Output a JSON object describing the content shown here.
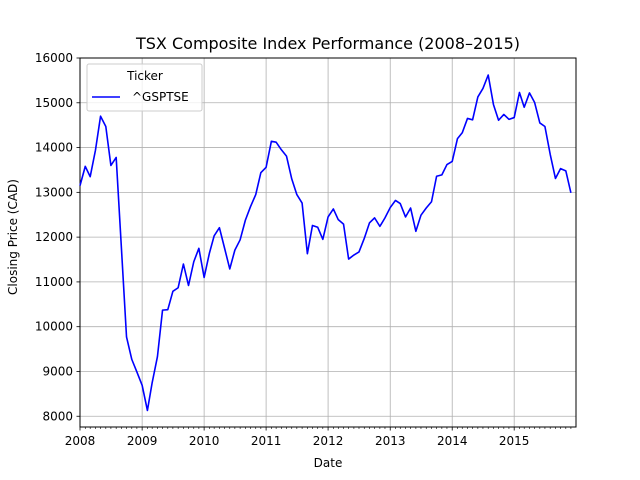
{
  "chart_data": {
    "type": "line",
    "title": "TSX Composite Index Performance (2008–2015)",
    "xlabel": "Date",
    "ylabel": "Closing Price (CAD)",
    "legend": {
      "title": "Ticker",
      "placement": "top-left"
    },
    "grid": true,
    "xlim": [
      "2008-01-01",
      "2015-12-31"
    ],
    "ylim": [
      7760,
      16000
    ],
    "x_ticks": [
      "2008",
      "2009",
      "2010",
      "2011",
      "2012",
      "2013",
      "2014",
      "2015"
    ],
    "y_ticks": [
      "8000",
      "9000",
      "10000",
      "11000",
      "12000",
      "13000",
      "14000",
      "15000",
      "16000"
    ],
    "series": [
      {
        "name": "^GSPTSE",
        "color": "#0000ff",
        "x": [
          "2008-01-01",
          "2008-02-01",
          "2008-03-01",
          "2008-04-01",
          "2008-05-01",
          "2008-06-01",
          "2008-07-01",
          "2008-08-01",
          "2008-09-01",
          "2008-10-01",
          "2008-11-01",
          "2008-12-01",
          "2009-01-01",
          "2009-02-01",
          "2009-03-01",
          "2009-04-01",
          "2009-05-01",
          "2009-06-01",
          "2009-07-01",
          "2009-08-01",
          "2009-09-01",
          "2009-10-01",
          "2009-11-01",
          "2009-12-01",
          "2010-01-01",
          "2010-02-01",
          "2010-03-01",
          "2010-04-01",
          "2010-05-01",
          "2010-06-01",
          "2010-07-01",
          "2010-08-01",
          "2010-09-01",
          "2010-10-01",
          "2010-11-01",
          "2010-12-01",
          "2011-01-01",
          "2011-02-01",
          "2011-03-01",
          "2011-04-01",
          "2011-05-01",
          "2011-06-01",
          "2011-07-01",
          "2011-08-01",
          "2011-09-01",
          "2011-10-01",
          "2011-11-01",
          "2011-12-01",
          "2012-01-01",
          "2012-02-01",
          "2012-03-01",
          "2012-04-01",
          "2012-05-01",
          "2012-06-01",
          "2012-07-01",
          "2012-08-01",
          "2012-09-01",
          "2012-10-01",
          "2012-11-01",
          "2012-12-01",
          "2013-01-01",
          "2013-02-01",
          "2013-03-01",
          "2013-04-01",
          "2013-05-01",
          "2013-06-01",
          "2013-07-01",
          "2013-08-01",
          "2013-09-01",
          "2013-10-01",
          "2013-11-01",
          "2013-12-01",
          "2014-01-01",
          "2014-02-01",
          "2014-03-01",
          "2014-04-01",
          "2014-05-01",
          "2014-06-01",
          "2014-07-01",
          "2014-08-01",
          "2014-09-01",
          "2014-10-01",
          "2014-11-01",
          "2014-12-01",
          "2015-01-01",
          "2015-02-01",
          "2015-03-01",
          "2015-04-01",
          "2015-05-01",
          "2015-06-01",
          "2015-07-01",
          "2015-08-01",
          "2015-09-01",
          "2015-10-01",
          "2015-11-01",
          "2015-12-01"
        ],
        "y": [
          13150,
          13580,
          13350,
          13940,
          14700,
          14470,
          13600,
          13780,
          11750,
          9770,
          9270,
          8990,
          8690,
          8130,
          8750,
          9330,
          10370,
          10380,
          10790,
          10870,
          11400,
          10920,
          11450,
          11750,
          11100,
          11640,
          12030,
          12210,
          11760,
          11290,
          11710,
          11940,
          12380,
          12680,
          12950,
          13440,
          13560,
          14140,
          14120,
          13950,
          13810,
          13300,
          12950,
          12760,
          11630,
          12260,
          12220,
          11950,
          12450,
          12630,
          12390,
          12290,
          11510,
          11600,
          11670,
          11970,
          12320,
          12430,
          12240,
          12430,
          12660,
          12820,
          12750,
          12450,
          12650,
          12130,
          12490,
          12650,
          12790,
          13360,
          13390,
          13620,
          13690,
          14200,
          14330,
          14650,
          14620,
          15130,
          15320,
          15620,
          14960,
          14610,
          14740,
          14630,
          14670,
          15230,
          14900,
          15220,
          15010,
          14550,
          14470,
          13850,
          13310,
          13530,
          13480,
          12990
        ]
      }
    ]
  }
}
